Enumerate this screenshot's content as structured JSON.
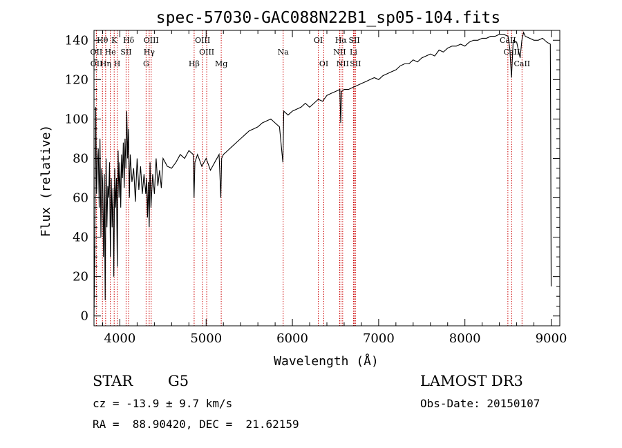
{
  "chart_data": {
    "type": "line",
    "title": "spec-57030-GAC088N22B1_sp05-104.fits",
    "xlabel": "Wavelength (Å)",
    "ylabel": "Flux (relative)",
    "xlim": [
      3700,
      9100
    ],
    "ylim": [
      -5,
      145
    ],
    "xticks": [
      4000,
      5000,
      6000,
      7000,
      8000,
      9000
    ],
    "yticks": [
      0,
      20,
      40,
      60,
      80,
      100,
      120,
      140
    ],
    "line_color": "#000000",
    "marker_color": "#cc0000",
    "spectrum": {
      "name": "flux",
      "x": [
        3700,
        3710,
        3720,
        3730,
        3740,
        3750,
        3760,
        3770,
        3780,
        3790,
        3800,
        3810,
        3820,
        3830,
        3840,
        3850,
        3860,
        3870,
        3880,
        3890,
        3900,
        3910,
        3920,
        3930,
        3940,
        3950,
        3960,
        3970,
        3980,
        3990,
        4000,
        4010,
        4020,
        4030,
        4040,
        4050,
        4060,
        4070,
        4080,
        4090,
        4100,
        4110,
        4120,
        4140,
        4160,
        4180,
        4200,
        4220,
        4240,
        4260,
        4280,
        4300,
        4310,
        4320,
        4330,
        4340,
        4350,
        4360,
        4380,
        4400,
        4420,
        4440,
        4460,
        4480,
        4500,
        4550,
        4600,
        4650,
        4700,
        4750,
        4800,
        4850,
        4860,
        4870,
        4900,
        4950,
        5000,
        5050,
        5100,
        5150,
        5170,
        5180,
        5200,
        5250,
        5300,
        5350,
        5400,
        5450,
        5500,
        5550,
        5600,
        5650,
        5700,
        5750,
        5800,
        5850,
        5890,
        5900,
        5950,
        6000,
        6050,
        6100,
        6150,
        6200,
        6250,
        6300,
        6350,
        6400,
        6450,
        6500,
        6550,
        6560,
        6570,
        6600,
        6650,
        6700,
        6750,
        6800,
        6850,
        6900,
        6950,
        7000,
        7050,
        7100,
        7150,
        7200,
        7250,
        7300,
        7350,
        7400,
        7450,
        7500,
        7550,
        7600,
        7650,
        7700,
        7750,
        7800,
        7850,
        7900,
        7950,
        8000,
        8050,
        8100,
        8150,
        8200,
        8250,
        8300,
        8350,
        8400,
        8450,
        8500,
        8520,
        8540,
        8560,
        8600,
        8640,
        8660,
        8680,
        8700,
        8750,
        8800,
        8850,
        8900,
        8950,
        8990,
        8995,
        9000
      ],
      "y": [
        0,
        35,
        106,
        62,
        78,
        85,
        55,
        90,
        40,
        75,
        68,
        30,
        72,
        8,
        80,
        45,
        66,
        60,
        78,
        30,
        70,
        45,
        65,
        20,
        75,
        55,
        70,
        25,
        84,
        60,
        78,
        55,
        82,
        70,
        88,
        65,
        90,
        75,
        104,
        80,
        95,
        60,
        82,
        68,
        75,
        58,
        80,
        64,
        76,
        62,
        72,
        62,
        70,
        50,
        68,
        45,
        78,
        55,
        72,
        62,
        80,
        66,
        74,
        65,
        80,
        76,
        75,
        78,
        82,
        80,
        84,
        82,
        60,
        78,
        82,
        76,
        80,
        74,
        78,
        82,
        60,
        80,
        82,
        84,
        86,
        88,
        90,
        92,
        94,
        95,
        96,
        98,
        99,
        100,
        98,
        96,
        78,
        104,
        102,
        104,
        105,
        106,
        108,
        106,
        108,
        110,
        109,
        112,
        113,
        114,
        115,
        98,
        114,
        115,
        115,
        116,
        117,
        118,
        119,
        120,
        121,
        120,
        122,
        123,
        124,
        125,
        127,
        128,
        128,
        130,
        129,
        131,
        132,
        133,
        132,
        135,
        134,
        136,
        137,
        137,
        138,
        137,
        139,
        140,
        140,
        141,
        141,
        142,
        142,
        143,
        143,
        142,
        136,
        121,
        140,
        139,
        131,
        140,
        144,
        142,
        141,
        140,
        140,
        141,
        139,
        138,
        89,
        15
      ]
    },
    "lines_row1": [
      {
        "label": "Hθ",
        "x": 3798
      },
      {
        "label": "K",
        "x": 3934
      },
      {
        "label": "Hδ",
        "x": 4102
      },
      {
        "label": "OIII",
        "x": 4363
      },
      {
        "label": "OIII",
        "x": 4959
      },
      {
        "label": "OI",
        "x": 6300
      },
      {
        "label": "Hα",
        "x": 6563
      },
      {
        "label": "SII",
        "x": 6717
      },
      {
        "label": "CaII",
        "x": 8498
      }
    ],
    "lines_row2": [
      {
        "label": "OII",
        "x": 3727
      },
      {
        "label": "He",
        "x": 3889
      },
      {
        "label": "SII",
        "x": 4072
      },
      {
        "label": "Hγ",
        "x": 4340
      },
      {
        "label": "OIII",
        "x": 5007
      },
      {
        "label": "Na",
        "x": 5893
      },
      {
        "label": "NII",
        "x": 6548
      },
      {
        "label": "Li",
        "x": 6708
      },
      {
        "label": "CaII",
        "x": 8542
      }
    ],
    "lines_row3": [
      {
        "label": "OII",
        "x": 3729
      },
      {
        "label": "Hη",
        "x": 3835
      },
      {
        "label": "H",
        "x": 3969
      },
      {
        "label": "G",
        "x": 4304
      },
      {
        "label": "Hβ",
        "x": 4861
      },
      {
        "label": "Mg",
        "x": 5175
      },
      {
        "label": "OI",
        "x": 6364
      },
      {
        "label": "NII",
        "x": 6583
      },
      {
        "label": "SII",
        "x": 6731
      },
      {
        "label": "CaII",
        "x": 8662
      }
    ]
  },
  "info": {
    "object_class": "STAR",
    "subclass": "G5",
    "survey": "LAMOST DR3",
    "redshift": "cz = -13.9 ± 9.7 km/s",
    "obs_date": "Obs-Date: 20150107",
    "coords": "RA =  88.90420, DEC =  21.62159"
  }
}
